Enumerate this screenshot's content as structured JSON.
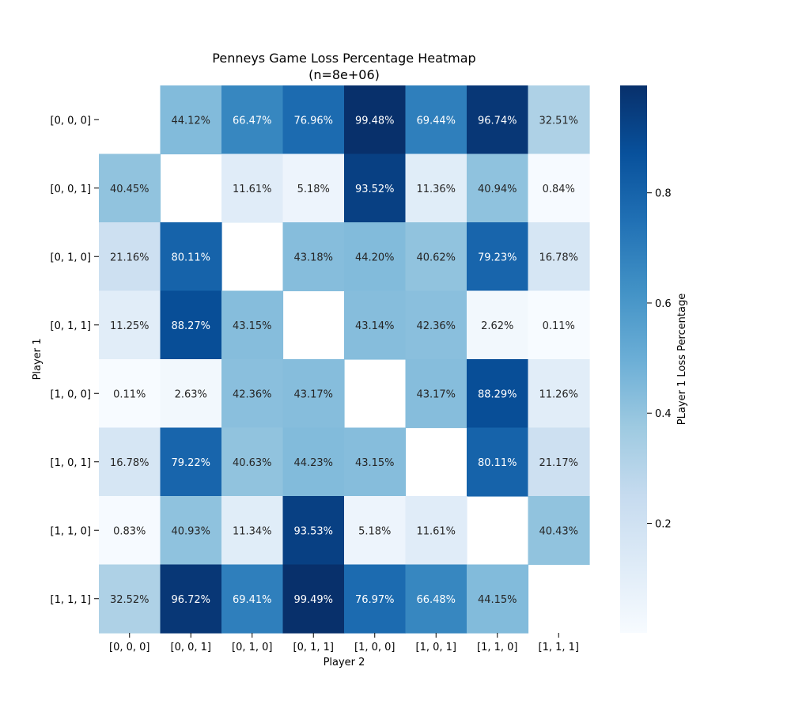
{
  "chart_data": {
    "type": "heatmap",
    "title": "Penneys Game Loss Percentage Heatmap",
    "subtitle": "(n=8e+06)",
    "xlabel": "Player 2",
    "ylabel": "Player 1",
    "row_labels": [
      "[0, 0, 0]",
      "[0, 0, 1]",
      "[0, 1, 0]",
      "[0, 1, 1]",
      "[1, 0, 0]",
      "[1, 0, 1]",
      "[1, 1, 0]",
      "[1, 1, 1]"
    ],
    "col_labels": [
      "[0, 0, 0]",
      "[0, 0, 1]",
      "[0, 1, 0]",
      "[0, 1, 1]",
      "[1, 0, 0]",
      "[1, 0, 1]",
      "[1, 1, 0]",
      "[1, 1, 1]"
    ],
    "values": [
      [
        null,
        0.4412,
        0.6647,
        0.7696,
        0.9948,
        0.6944,
        0.9674,
        0.3251
      ],
      [
        0.4045,
        null,
        0.1161,
        0.0518,
        0.9352,
        0.1136,
        0.4094,
        0.0084
      ],
      [
        0.2116,
        0.8011,
        null,
        0.4318,
        0.442,
        0.4062,
        0.7923,
        0.1678
      ],
      [
        0.1125,
        0.8827,
        0.4315,
        null,
        0.4314,
        0.4236,
        0.0262,
        0.0011
      ],
      [
        0.0011,
        0.0263,
        0.4236,
        0.4317,
        null,
        0.4317,
        0.8829,
        0.1126
      ],
      [
        0.1678,
        0.7922,
        0.4063,
        0.4423,
        0.4315,
        null,
        0.8011,
        0.2117
      ],
      [
        0.0083,
        0.4093,
        0.1134,
        0.9353,
        0.0518,
        0.1161,
        null,
        0.4043
      ],
      [
        0.3252,
        0.9672,
        0.6941,
        0.9949,
        0.7697,
        0.6648,
        0.4415,
        null
      ]
    ],
    "cell_labels": [
      [
        "",
        "44.12%",
        "66.47%",
        "76.96%",
        "99.48%",
        "69.44%",
        "96.74%",
        "32.51%"
      ],
      [
        "40.45%",
        "",
        "11.61%",
        "5.18%",
        "93.52%",
        "11.36%",
        "40.94%",
        "0.84%"
      ],
      [
        "21.16%",
        "80.11%",
        "",
        "43.18%",
        "44.20%",
        "40.62%",
        "79.23%",
        "16.78%"
      ],
      [
        "11.25%",
        "88.27%",
        "43.15%",
        "",
        "43.14%",
        "42.36%",
        "2.62%",
        "0.11%"
      ],
      [
        "0.11%",
        "2.63%",
        "42.36%",
        "43.17%",
        "",
        "43.17%",
        "88.29%",
        "11.26%"
      ],
      [
        "16.78%",
        "79.22%",
        "40.63%",
        "44.23%",
        "43.15%",
        "",
        "80.11%",
        "21.17%"
      ],
      [
        "0.83%",
        "40.93%",
        "11.34%",
        "93.53%",
        "5.18%",
        "11.61%",
        "",
        "40.43%"
      ],
      [
        "32.52%",
        "96.72%",
        "69.41%",
        "99.49%",
        "76.97%",
        "66.48%",
        "44.15%",
        ""
      ]
    ],
    "colorbar": {
      "label": "PLayer 1 Loss Percentage",
      "min": 0.0011,
      "max": 0.9949,
      "ticks": [
        0.2,
        0.4,
        0.6,
        0.8
      ],
      "tick_labels": [
        "0.2",
        "0.4",
        "0.6",
        "0.8"
      ]
    },
    "colormap": "Blues",
    "colormap_stops": [
      "#f7fbff",
      "#deebf7",
      "#c6dbef",
      "#9ecae1",
      "#6baed6",
      "#4292c6",
      "#2171b5",
      "#08519c",
      "#08306b"
    ],
    "label_color_dark": "#262626",
    "label_color_light": "#ffffff"
  }
}
